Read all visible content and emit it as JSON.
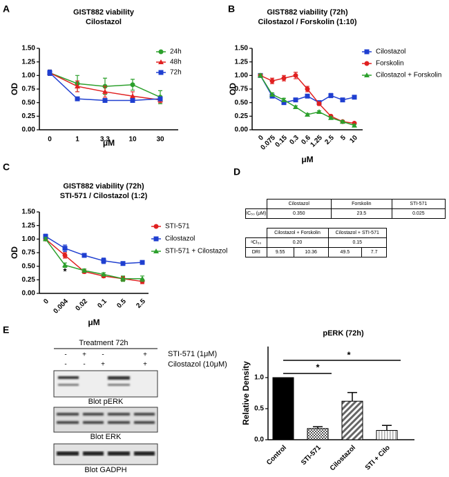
{
  "panel_labels": [
    "A",
    "B",
    "C",
    "D",
    "E"
  ],
  "chart_data": [
    {
      "type": "line",
      "title": [
        "GIST882 viability",
        "Cilostazol"
      ],
      "categories": [
        "0",
        "1",
        "3.3",
        "10",
        "30"
      ],
      "x_label": "μM",
      "y_label": "OD",
      "ylim": [
        0,
        1.5
      ],
      "yticks": [
        {
          "value": 0,
          "label": "0.00"
        },
        {
          "value": 0.25,
          "label": "0.25"
        },
        {
          "value": 0.5,
          "label": "0.50"
        },
        {
          "value": 0.75,
          "label": "0.75"
        },
        {
          "value": 1,
          "label": "1.00"
        },
        {
          "value": 1.25,
          "label": "1.25"
        },
        {
          "value": 1.5,
          "label": "1.50"
        }
      ],
      "series": [
        {
          "name": "24h",
          "color": "#2ca02c",
          "marker": "circle",
          "values": [
            1.05,
            0.85,
            0.8,
            0.83,
            0.6
          ],
          "errors": [
            0.05,
            0.15,
            0.15,
            0.1,
            0.12
          ]
        },
        {
          "name": "48h",
          "color": "#e02020",
          "marker": "triangle",
          "values": [
            1.05,
            0.8,
            0.7,
            0.62,
            0.55
          ],
          "errors": [
            0.05,
            0.1,
            0.1,
            0.08,
            0.05
          ]
        },
        {
          "name": "72h",
          "color": "#1f3fd0",
          "marker": "square",
          "values": [
            1.05,
            0.57,
            0.54,
            0.54,
            0.57
          ],
          "errors": [
            0.05,
            0.03,
            0.02,
            0.02,
            0.03
          ]
        }
      ]
    },
    {
      "type": "line",
      "title": [
        "GIST882 viability (72h)",
        "Cilostazol / Forskolin (1:10)"
      ],
      "categories": [
        "0",
        "0.075",
        "0.15",
        "0.3",
        "0.6",
        "1.25",
        "2.5",
        "5",
        "10"
      ],
      "x_label": "μM",
      "y_label": "OD",
      "ylim": [
        0,
        1.5
      ],
      "yticks": [
        {
          "value": 0,
          "label": "0.00"
        },
        {
          "value": 0.25,
          "label": "0.25"
        },
        {
          "value": 0.5,
          "label": "0.50"
        },
        {
          "value": 0.75,
          "label": "0.75"
        },
        {
          "value": 1,
          "label": "1.00"
        },
        {
          "value": 1.25,
          "label": "1.25"
        },
        {
          "value": 1.5,
          "label": "1.50"
        }
      ],
      "series": [
        {
          "name": "Cilostazol",
          "color": "#1f3fd0",
          "marker": "square",
          "values": [
            1.0,
            0.62,
            0.5,
            0.55,
            0.62,
            0.5,
            0.63,
            0.55,
            0.6
          ],
          "errors": [
            0.03,
            0.03,
            0.03,
            0.03,
            0.03,
            0.03,
            0.04,
            0.02,
            0.02
          ]
        },
        {
          "name": "Forskolin",
          "color": "#e02020",
          "marker": "circle",
          "values": [
            1.0,
            0.9,
            0.95,
            1.0,
            0.75,
            0.48,
            0.25,
            0.15,
            0.12
          ],
          "errors": [
            0.03,
            0.05,
            0.05,
            0.06,
            0.05,
            0.03,
            0.02,
            0.02,
            0.02
          ]
        },
        {
          "name": "Cilostazol + Forskolin",
          "color": "#2ca02c",
          "marker": "triangle",
          "values": [
            1.0,
            0.65,
            0.55,
            0.42,
            0.28,
            0.33,
            0.22,
            0.15,
            0.08
          ],
          "errors": [
            0.03,
            0.03,
            0.03,
            0.02,
            0.02,
            0.02,
            0.02,
            0.02,
            0.02
          ]
        }
      ]
    },
    {
      "type": "line",
      "title": [
        "GIST882 viability (72h)",
        "STI-571 / Cilostazol (1:2)"
      ],
      "categories": [
        "0",
        "0.004",
        "0.02",
        "0.1",
        "0.5",
        "2.5"
      ],
      "x_label": "μM",
      "y_label": "OD",
      "ylim": [
        0,
        1.5
      ],
      "yticks": [
        {
          "value": 0,
          "label": "0.00"
        },
        {
          "value": 0.25,
          "label": "0.25"
        },
        {
          "value": 0.5,
          "label": "0.50"
        },
        {
          "value": 0.75,
          "label": "0.75"
        },
        {
          "value": 1,
          "label": "1.00"
        },
        {
          "value": 1.25,
          "label": "1.25"
        },
        {
          "value": 1.5,
          "label": "1.50"
        }
      ],
      "annotations": [
        "*"
      ],
      "series": [
        {
          "name": "STI-571",
          "color": "#e02020",
          "marker": "circle",
          "values": [
            1.0,
            0.7,
            0.4,
            0.32,
            0.27,
            0.22
          ],
          "errors": [
            0.03,
            0.05,
            0.03,
            0.03,
            0.04,
            0.04
          ]
        },
        {
          "name": "Cilostazol",
          "color": "#1f3fd0",
          "marker": "square",
          "values": [
            1.05,
            0.83,
            0.7,
            0.6,
            0.55,
            0.57
          ],
          "errors": [
            0.04,
            0.06,
            0.03,
            0.05,
            0.03,
            0.02
          ]
        },
        {
          "name": "STI-571 + Cilostazol",
          "color": "#2ca02c",
          "marker": "triangle",
          "values": [
            1.0,
            0.52,
            0.42,
            0.35,
            0.27,
            0.27
          ],
          "errors": [
            0.03,
            0.04,
            0.03,
            0.03,
            0.05,
            0.05
          ]
        }
      ]
    },
    {
      "type": "bar",
      "title": [
        "pERK (72h)"
      ],
      "categories": [
        "Control",
        "STI-571",
        "Cilostazol",
        "STI + Cilo"
      ],
      "y_label": "Relative Density",
      "ylim": [
        0,
        1.5
      ],
      "yticks": [
        {
          "value": 0,
          "label": "0.0"
        },
        {
          "value": 0.5,
          "label": "0.5"
        },
        {
          "value": 1,
          "label": "1.0"
        }
      ],
      "annotations": [
        "*",
        "*"
      ],
      "values": [
        1.0,
        0.18,
        0.62,
        0.15
      ],
      "errors": [
        0,
        0.03,
        0.14,
        0.08
      ],
      "patterns": [
        "solid",
        "checker",
        "hatch",
        "stripes"
      ]
    }
  ],
  "table_d": {
    "table1": {
      "header": [
        "Cilostazol",
        "Forskolin",
        "STI-571"
      ],
      "rows": [
        {
          "label": "IC₅₀ (μM)",
          "cells": [
            "0.350",
            "23.5",
            "0.025"
          ]
        }
      ]
    },
    "table2": {
      "header": [
        "Cilostazol + Forskolin",
        "Cilostazol + STI-571"
      ],
      "rows": [
        {
          "label": "ᵃCI₅₀",
          "cells": [
            "0.20",
            "0.15"
          ]
        },
        {
          "label": "DRI",
          "cells": [
            "9.55",
            "10.36",
            "49.5",
            "7.7"
          ]
        }
      ]
    }
  },
  "blot": {
    "title": "Treatment 72h",
    "rows": [
      {
        "label": "STI-571 (1μM)",
        "signs": [
          "-",
          "+",
          "-",
          "+"
        ]
      },
      {
        "label": "Cilostazol (10μM)",
        "signs": [
          "-",
          "-",
          "+",
          "+"
        ]
      }
    ],
    "panels": [
      "Blot pERK",
      "Blot ERK",
      "Blot GADPH"
    ]
  }
}
